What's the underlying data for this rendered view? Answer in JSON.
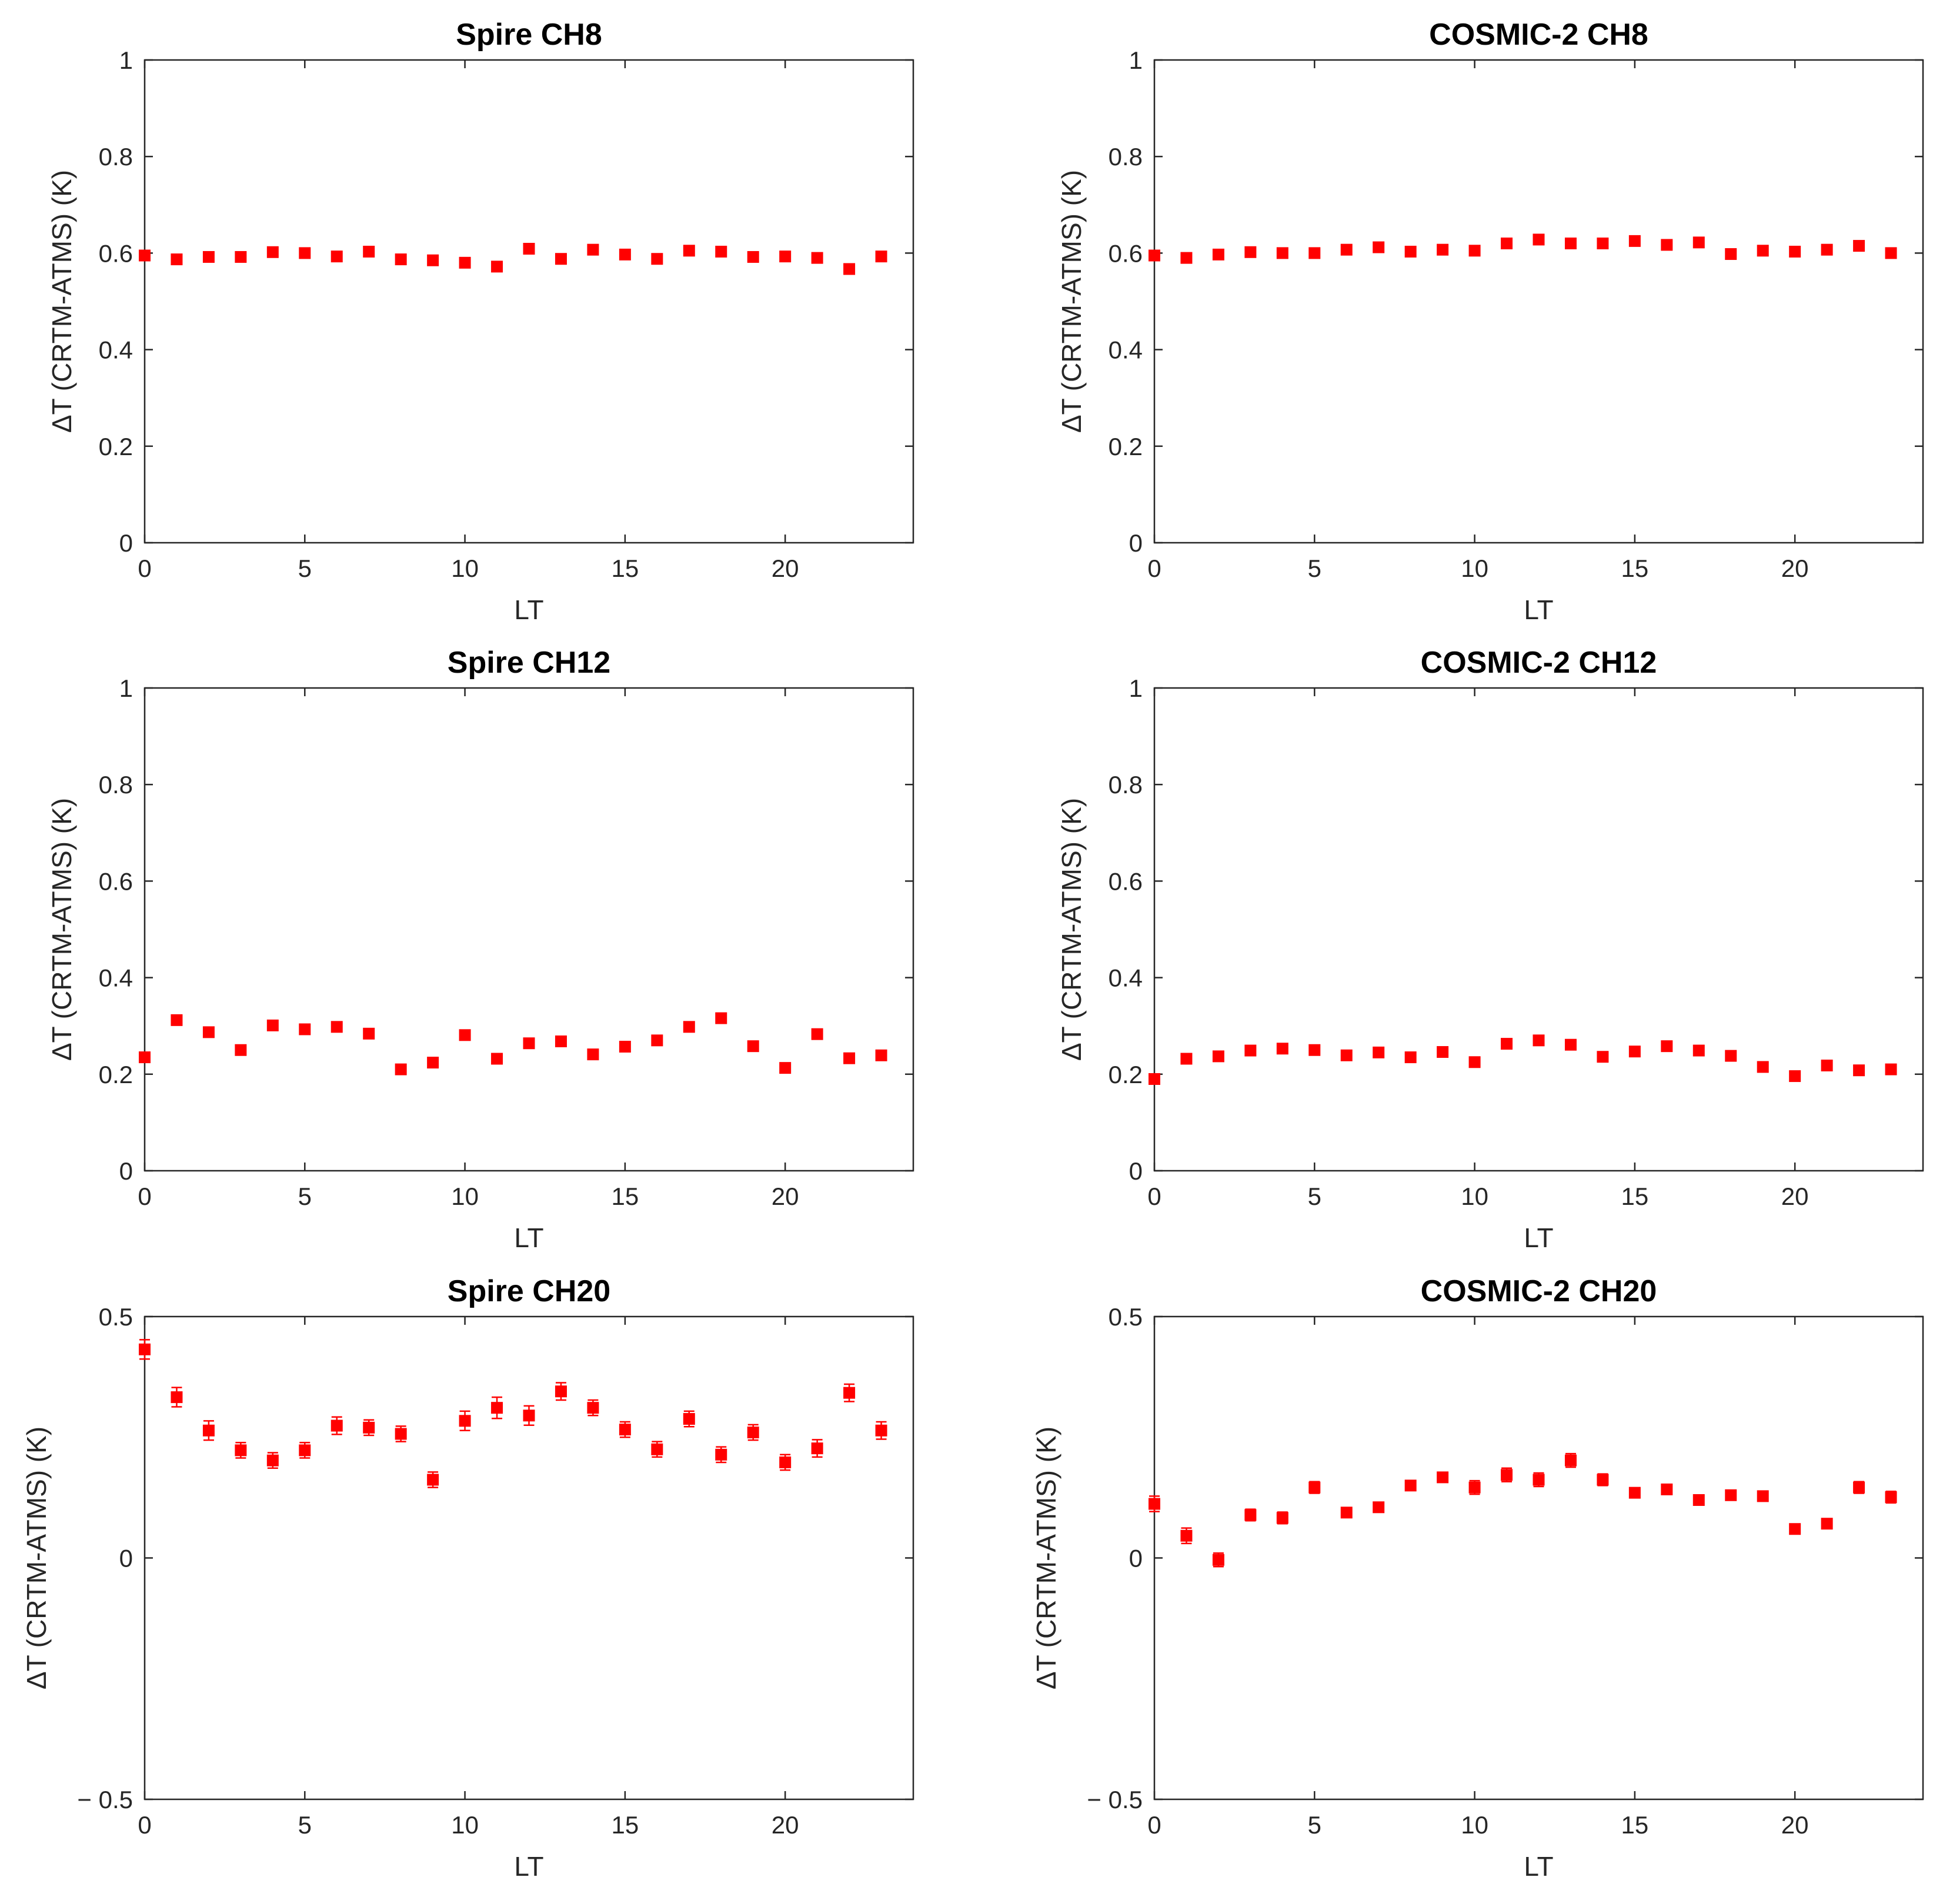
{
  "figure": {
    "marker_color": "#ff0000",
    "axis_color": "#262626",
    "background": "#ffffff"
  },
  "chart_data": [
    {
      "type": "scatter",
      "title": "Spire CH8",
      "xlabel": "LT",
      "ylabel": "ΔT (CRTM-ATMS) (K)",
      "xlim": [
        0,
        24
      ],
      "ylim": [
        0,
        1
      ],
      "xticks": [
        "0",
        "5",
        "10",
        "15",
        "20"
      ],
      "yticks": [
        "0",
        "0.2",
        "0.4",
        "0.6",
        "0.8",
        "1"
      ],
      "x": [
        0,
        1,
        2,
        3,
        4,
        5,
        6,
        7,
        8,
        9,
        10,
        11,
        12,
        13,
        14,
        15,
        16,
        17,
        18,
        19,
        20,
        21,
        22,
        23
      ],
      "y": [
        0.595,
        0.587,
        0.592,
        0.592,
        0.602,
        0.6,
        0.593,
        0.603,
        0.587,
        0.585,
        0.58,
        0.572,
        0.609,
        0.588,
        0.607,
        0.597,
        0.588,
        0.605,
        0.603,
        0.592,
        0.593,
        0.59,
        0.567,
        0.593
      ],
      "err": [
        0.003,
        0.003,
        0.003,
        0.003,
        0.003,
        0.003,
        0.003,
        0.003,
        0.003,
        0.003,
        0.003,
        0.003,
        0.003,
        0.003,
        0.003,
        0.003,
        0.003,
        0.003,
        0.003,
        0.003,
        0.003,
        0.003,
        0.003,
        0.003
      ],
      "grid": false
    },
    {
      "type": "scatter",
      "title": "COSMIC-2 CH8",
      "xlabel": "LT",
      "ylabel": "ΔT (CRTM-ATMS) (K)",
      "xlim": [
        0,
        24
      ],
      "ylim": [
        0,
        1
      ],
      "xticks": [
        "0",
        "5",
        "10",
        "15",
        "20"
      ],
      "yticks": [
        "0",
        "0.2",
        "0.4",
        "0.6",
        "0.8",
        "1"
      ],
      "x": [
        0,
        1,
        2,
        3,
        4,
        5,
        6,
        7,
        8,
        9,
        10,
        11,
        12,
        13,
        14,
        15,
        16,
        17,
        18,
        19,
        20,
        21,
        22,
        23
      ],
      "y": [
        0.595,
        0.59,
        0.597,
        0.602,
        0.6,
        0.6,
        0.607,
        0.612,
        0.603,
        0.607,
        0.605,
        0.62,
        0.628,
        0.62,
        0.62,
        0.625,
        0.617,
        0.622,
        0.598,
        0.605,
        0.603,
        0.607,
        0.615,
        0.6
      ],
      "err": [
        0.003,
        0.003,
        0.003,
        0.003,
        0.003,
        0.003,
        0.003,
        0.003,
        0.003,
        0.003,
        0.003,
        0.003,
        0.003,
        0.003,
        0.003,
        0.003,
        0.003,
        0.003,
        0.003,
        0.003,
        0.003,
        0.003,
        0.003,
        0.003
      ],
      "grid": false
    },
    {
      "type": "scatter",
      "title": "Spire CH12",
      "xlabel": "LT",
      "ylabel": "ΔT (CRTM-ATMS) (K)",
      "xlim": [
        0,
        24
      ],
      "ylim": [
        0,
        1
      ],
      "xticks": [
        "0",
        "5",
        "10",
        "15",
        "20"
      ],
      "yticks": [
        "0",
        "0.2",
        "0.4",
        "0.6",
        "0.8",
        "1"
      ],
      "x": [
        0,
        1,
        2,
        3,
        4,
        5,
        6,
        7,
        8,
        9,
        10,
        11,
        12,
        13,
        14,
        15,
        16,
        17,
        18,
        19,
        20,
        21,
        22,
        23
      ],
      "y": [
        0.235,
        0.312,
        0.287,
        0.25,
        0.301,
        0.293,
        0.298,
        0.284,
        0.21,
        0.224,
        0.281,
        0.232,
        0.264,
        0.268,
        0.241,
        0.257,
        0.27,
        0.298,
        0.316,
        0.258,
        0.213,
        0.283,
        0.233,
        0.239
      ],
      "err": [
        0.004,
        0.004,
        0.004,
        0.004,
        0.004,
        0.004,
        0.004,
        0.004,
        0.004,
        0.004,
        0.004,
        0.004,
        0.004,
        0.004,
        0.004,
        0.004,
        0.004,
        0.004,
        0.004,
        0.004,
        0.004,
        0.004,
        0.004,
        0.004
      ],
      "grid": false
    },
    {
      "type": "scatter",
      "title": "COSMIC-2 CH12",
      "xlabel": "LT",
      "ylabel": "ΔT (CRTM-ATMS) (K)",
      "xlim": [
        0,
        24
      ],
      "ylim": [
        0,
        1
      ],
      "xticks": [
        "0",
        "5",
        "10",
        "15",
        "20"
      ],
      "yticks": [
        "0",
        "0.2",
        "0.4",
        "0.6",
        "0.8",
        "1"
      ],
      "x": [
        0,
        1,
        2,
        3,
        4,
        5,
        6,
        7,
        8,
        9,
        10,
        11,
        12,
        13,
        14,
        15,
        16,
        17,
        18,
        19,
        20,
        21,
        22,
        23
      ],
      "y": [
        0.19,
        0.232,
        0.237,
        0.249,
        0.253,
        0.25,
        0.239,
        0.245,
        0.235,
        0.246,
        0.225,
        0.263,
        0.27,
        0.261,
        0.236,
        0.247,
        0.258,
        0.249,
        0.238,
        0.215,
        0.196,
        0.218,
        0.208,
        0.21
      ],
      "err": [
        0.004,
        0.004,
        0.004,
        0.004,
        0.004,
        0.004,
        0.004,
        0.004,
        0.004,
        0.004,
        0.004,
        0.004,
        0.004,
        0.004,
        0.004,
        0.004,
        0.004,
        0.004,
        0.004,
        0.004,
        0.004,
        0.004,
        0.004,
        0.004
      ],
      "grid": false
    },
    {
      "type": "scatter",
      "title": "Spire CH20",
      "xlabel": "LT",
      "ylabel": "ΔT (CRTM-ATMS) (K)",
      "xlim": [
        0,
        24
      ],
      "ylim": [
        -0.5,
        0.5
      ],
      "xticks": [
        "0",
        "5",
        "10",
        "15",
        "20"
      ],
      "yticks": [
        "− 0.5",
        "0",
        "0.5"
      ],
      "ytick_values": [
        -0.5,
        0,
        0.5
      ],
      "x": [
        0,
        1,
        2,
        3,
        4,
        5,
        6,
        7,
        8,
        9,
        10,
        11,
        12,
        13,
        14,
        15,
        16,
        17,
        18,
        19,
        20,
        21,
        22,
        23
      ],
      "y": [
        0.432,
        0.333,
        0.264,
        0.223,
        0.202,
        0.223,
        0.274,
        0.27,
        0.257,
        0.162,
        0.284,
        0.311,
        0.295,
        0.345,
        0.311,
        0.266,
        0.225,
        0.288,
        0.214,
        0.26,
        0.198,
        0.227,
        0.342,
        0.264
      ],
      "err": [
        0.02,
        0.02,
        0.02,
        0.016,
        0.016,
        0.016,
        0.018,
        0.016,
        0.016,
        0.016,
        0.02,
        0.022,
        0.02,
        0.018,
        0.016,
        0.016,
        0.016,
        0.016,
        0.016,
        0.016,
        0.016,
        0.018,
        0.018,
        0.018
      ],
      "grid": false
    },
    {
      "type": "scatter",
      "title": "COSMIC-2 CH20",
      "xlabel": "LT",
      "ylabel": "ΔT (CRTM-ATMS) (K)",
      "xlim": [
        0,
        24
      ],
      "ylim": [
        -0.5,
        0.5
      ],
      "xticks": [
        "0",
        "5",
        "10",
        "15",
        "20"
      ],
      "yticks": [
        "− 0.5",
        "0",
        "0.5"
      ],
      "ytick_values": [
        -0.5,
        0,
        0.5
      ],
      "x": [
        0,
        1,
        2,
        3,
        4,
        5,
        6,
        7,
        8,
        9,
        10,
        11,
        12,
        13,
        14,
        15,
        16,
        17,
        18,
        19,
        20,
        21,
        22,
        23
      ],
      "y": [
        0.112,
        0.046,
        -0.004,
        0.089,
        0.083,
        0.146,
        0.094,
        0.105,
        0.15,
        0.167,
        0.146,
        0.172,
        0.162,
        0.202,
        0.162,
        0.135,
        0.142,
        0.12,
        0.13,
        0.128,
        0.06,
        0.071,
        0.146,
        0.126
      ],
      "err": [
        0.016,
        0.016,
        0.014,
        0.012,
        0.012,
        0.012,
        0.01,
        0.01,
        0.01,
        0.01,
        0.014,
        0.014,
        0.014,
        0.014,
        0.012,
        0.01,
        0.01,
        0.01,
        0.01,
        0.01,
        0.01,
        0.01,
        0.012,
        0.012
      ],
      "grid": false
    }
  ]
}
